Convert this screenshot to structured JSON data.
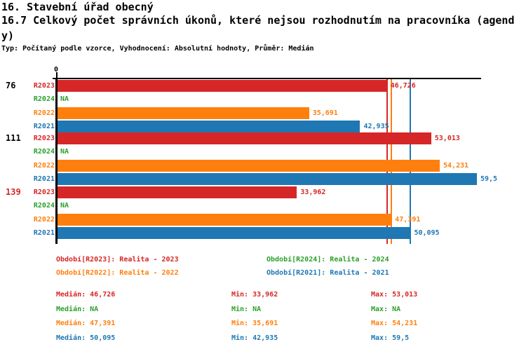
{
  "header": {
    "title": "16. Stavební úřad obecný",
    "subtitle_line1": "16.7 Celkový počet správních úkonů, které nejsou rozhodnutím na pracovníka (agend",
    "subtitle_line2": "y)",
    "meta": "Typ: Počítaný podle vzorce, Vyhodnocení: Absolutní hodnoty, Průměr: Medián"
  },
  "chart_data": {
    "type": "bar",
    "orientation": "horizontal",
    "title": "16.7 Celkový počet správních úkonů, které nejsou rozhodnutím na pracovníka (agendy)",
    "axis": {
      "zero_label": "0",
      "xlim": [
        0,
        60.1
      ],
      "grid": false
    },
    "series_order": [
      "R2023",
      "R2024",
      "R2022",
      "R2021"
    ],
    "series_colors": {
      "R2023": "#d62728",
      "R2024": "#2ca02c",
      "R2022": "#ff7f0e",
      "R2021": "#1f77b4"
    },
    "groups": [
      {
        "label": "76",
        "label_color": "#000000",
        "bars": [
          {
            "series": "R2023",
            "value": 46.726,
            "display": "46,726"
          },
          {
            "series": "R2024",
            "value": null,
            "display": "NA"
          },
          {
            "series": "R2022",
            "value": 35.691,
            "display": "35,691"
          },
          {
            "series": "R2021",
            "value": 42.935,
            "display": "42,935"
          }
        ]
      },
      {
        "label": "111",
        "label_color": "#000000",
        "bars": [
          {
            "series": "R2023",
            "value": 53.013,
            "display": "53,013"
          },
          {
            "series": "R2024",
            "value": null,
            "display": "NA"
          },
          {
            "series": "R2022",
            "value": 54.231,
            "display": "54,231"
          },
          {
            "series": "R2021",
            "value": 59.5,
            "display": "59,5"
          }
        ]
      },
      {
        "label": "139",
        "label_color": "#d62728",
        "bars": [
          {
            "series": "R2023",
            "value": 33.962,
            "display": "33,962"
          },
          {
            "series": "R2024",
            "value": null,
            "display": "NA"
          },
          {
            "series": "R2022",
            "value": 47.391,
            "display": "47,391"
          },
          {
            "series": "R2021",
            "value": 50.095,
            "display": "50,095"
          }
        ]
      }
    ],
    "median_lines": [
      {
        "series": "R2023",
        "value": 46.726,
        "color": "#d62728"
      },
      {
        "series": "R2022",
        "value": 47.391,
        "color": "#ff7f0e"
      },
      {
        "series": "R2021",
        "value": 50.095,
        "color": "#1f77b4"
      }
    ]
  },
  "legend": {
    "items": [
      {
        "text": "Období[R2023]: Realita - 2023",
        "color": "#d62728",
        "col": 0,
        "row": 0
      },
      {
        "text": "Období[R2024]: Realita - 2024",
        "color": "#2ca02c",
        "col": 1,
        "row": 0
      },
      {
        "text": "Období[R2022]: Realita - 2022",
        "color": "#ff7f0e",
        "col": 0,
        "row": 1
      },
      {
        "text": "Období[R2021]: Realita - 2021",
        "color": "#1f77b4",
        "col": 1,
        "row": 1
      }
    ]
  },
  "stats": {
    "rows": [
      {
        "series": "R2023",
        "color": "#d62728",
        "median": "Medián: 46,726",
        "min": "Min: 33,962",
        "max": "Max: 53,013"
      },
      {
        "series": "R2024",
        "color": "#2ca02c",
        "median": "Medián: NA",
        "min": "Min: NA",
        "max": "Max: NA"
      },
      {
        "series": "R2022",
        "color": "#ff7f0e",
        "median": "Medián: 47,391",
        "min": "Min: 35,691",
        "max": "Max: 54,231"
      },
      {
        "series": "R2021",
        "color": "#1f77b4",
        "median": "Medián: 50,095",
        "min": "Min: 42,935",
        "max": "Max: 59,5"
      }
    ]
  }
}
